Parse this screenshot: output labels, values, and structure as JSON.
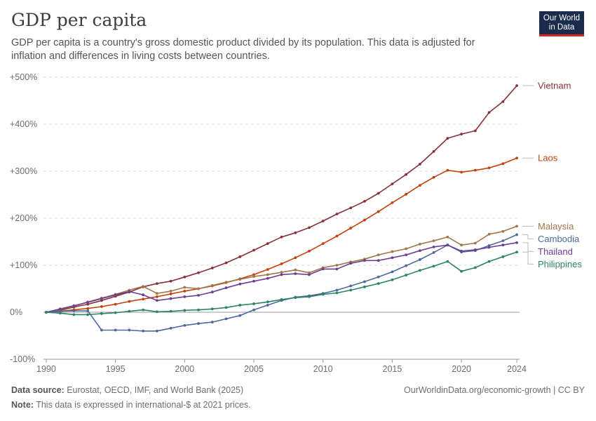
{
  "header": {
    "title": "GDP per capita",
    "subtitle": "GDP per capita is a country's gross domestic product divided by its population. This data is adjusted for inflation and differences in living costs between countries."
  },
  "logo": {
    "line1": "Our World",
    "line2": "in Data"
  },
  "footer": {
    "source_label": "Data source:",
    "source_text": "Eurostat, OECD, IMF, and World Bank (2025)",
    "note_label": "Note:",
    "note_text": "This data is expressed in international-$ at 2021 prices.",
    "link": "OurWorldinData.org/economic-growth | CC BY"
  },
  "chart_data": {
    "type": "line",
    "title": "GDP per capita",
    "xlabel": "",
    "ylabel": "",
    "xlim": [
      1989.8,
      2024.2
    ],
    "ylim": [
      -100,
      500
    ],
    "grid": true,
    "legend_position": "right-end-labels",
    "x_ticks": [
      1990,
      1995,
      2000,
      2005,
      2010,
      2015,
      2020,
      2024
    ],
    "x_tick_labels": [
      "1990",
      "1995",
      "2000",
      "2005",
      "2010",
      "2015",
      "2020",
      "2024"
    ],
    "y_ticks": [
      -100,
      0,
      100,
      200,
      300,
      400,
      500
    ],
    "y_tick_labels": [
      "-100%",
      "0%",
      "+100%",
      "+200%",
      "+300%",
      "+400%",
      "+500%"
    ],
    "x": [
      1990,
      1991,
      1992,
      1993,
      1994,
      1995,
      1996,
      1997,
      1998,
      1999,
      2000,
      2001,
      2002,
      2003,
      2004,
      2005,
      2006,
      2007,
      2008,
      2009,
      2010,
      2011,
      2012,
      2013,
      2014,
      2015,
      2016,
      2017,
      2018,
      2019,
      2020,
      2021,
      2022,
      2023,
      2024
    ],
    "series": [
      {
        "name": "Vietnam",
        "color": "#883039",
        "values": [
          0,
          4,
          11,
          17,
          25,
          34,
          43,
          54,
          61,
          66,
          75,
          84,
          94,
          105,
          118,
          132,
          146,
          160,
          169,
          180,
          194,
          209,
          222,
          236,
          253,
          273,
          293,
          315,
          342,
          370,
          379,
          386,
          425,
          448,
          482
        ]
      },
      {
        "name": "Laos",
        "color": "#c2410c",
        "values": [
          0,
          2,
          5,
          8,
          12,
          17,
          23,
          28,
          33,
          39,
          45,
          50,
          56,
          63,
          71,
          80,
          91,
          103,
          116,
          130,
          146,
          162,
          179,
          196,
          214,
          233,
          251,
          270,
          287,
          302,
          298,
          302,
          307,
          316,
          328
        ]
      },
      {
        "name": "Malaysia",
        "color": "#a2764a",
        "values": [
          0,
          6,
          13,
          22,
          30,
          38,
          47,
          55,
          40,
          45,
          53,
          50,
          57,
          64,
          70,
          76,
          80,
          85,
          90,
          84,
          95,
          100,
          107,
          113,
          122,
          129,
          135,
          145,
          152,
          160,
          143,
          147,
          166,
          172,
          183
        ]
      },
      {
        "name": "Cambodia",
        "color": "#4c6a9c",
        "values": [
          0,
          2,
          3,
          3,
          -38,
          -38,
          -38,
          -40,
          -40,
          -34,
          -28,
          -24,
          -21,
          -14,
          -7,
          5,
          15,
          25,
          32,
          35,
          40,
          47,
          56,
          65,
          75,
          86,
          99,
          112,
          127,
          143,
          128,
          131,
          142,
          152,
          165
        ]
      },
      {
        "name": "Thailand",
        "color": "#6d3e91",
        "values": [
          0,
          7,
          14,
          21,
          29,
          37,
          44,
          37,
          25,
          29,
          33,
          36,
          43,
          52,
          60,
          66,
          72,
          80,
          82,
          80,
          92,
          92,
          104,
          110,
          110,
          116,
          122,
          131,
          139,
          143,
          130,
          133,
          138,
          143,
          148
        ]
      },
      {
        "name": "Philippines",
        "color": "#2c8465",
        "values": [
          0,
          -2,
          -5,
          -5,
          -3,
          -1,
          2,
          5,
          1,
          2,
          4,
          5,
          7,
          10,
          15,
          18,
          22,
          27,
          31,
          33,
          38,
          41,
          47,
          54,
          61,
          69,
          79,
          89,
          98,
          108,
          87,
          95,
          108,
          118,
          128
        ]
      }
    ]
  }
}
